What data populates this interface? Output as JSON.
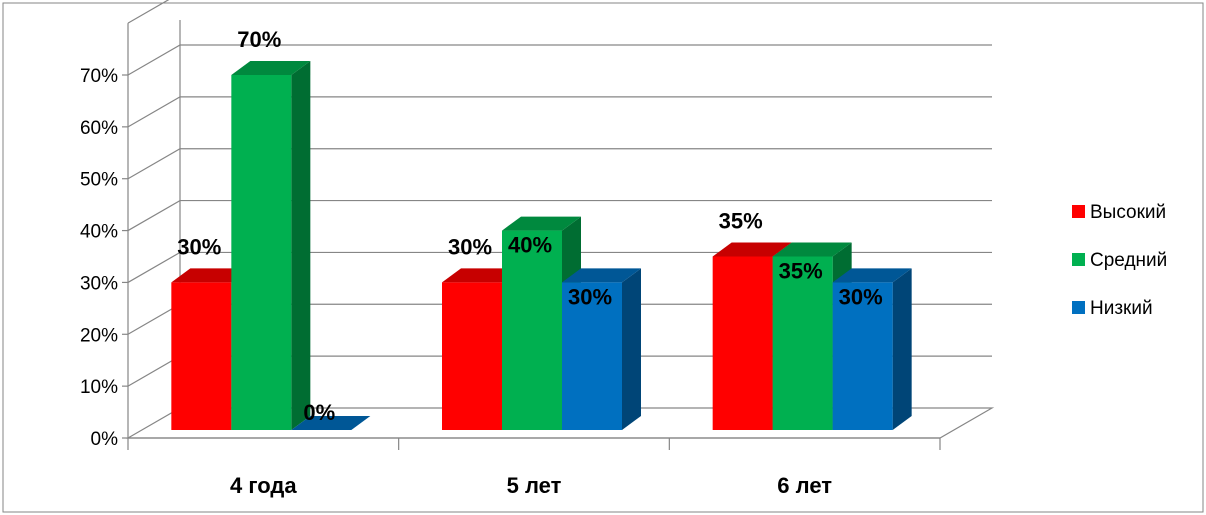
{
  "chart_data": {
    "type": "bar",
    "style": "3d-clustered-column",
    "categories": [
      "4 года",
      "5 лет",
      "6 лет"
    ],
    "series": [
      {
        "name": "Высокий",
        "values": [
          30,
          30,
          35
        ],
        "color": "#ff0000",
        "labels": [
          "30%",
          "30%",
          "35%"
        ]
      },
      {
        "name": "Средний",
        "values": [
          70,
          40,
          35
        ],
        "color": "#00b050",
        "labels": [
          "70%",
          "40%",
          "35%"
        ]
      },
      {
        "name": "Низкий",
        "values": [
          0,
          30,
          30
        ],
        "color": "#0070c0",
        "labels": [
          "0%",
          "30%",
          "30%"
        ]
      }
    ],
    "ylim": [
      0,
      70
    ],
    "yticks": [
      0,
      10,
      20,
      30,
      40,
      50,
      60,
      70
    ],
    "ytick_labels": [
      "0%",
      "10%",
      "20%",
      "30%",
      "40%",
      "50%",
      "60%",
      "70%"
    ],
    "grid": true,
    "legend": "right",
    "xlabel": "",
    "ylabel": "",
    "title": ""
  }
}
